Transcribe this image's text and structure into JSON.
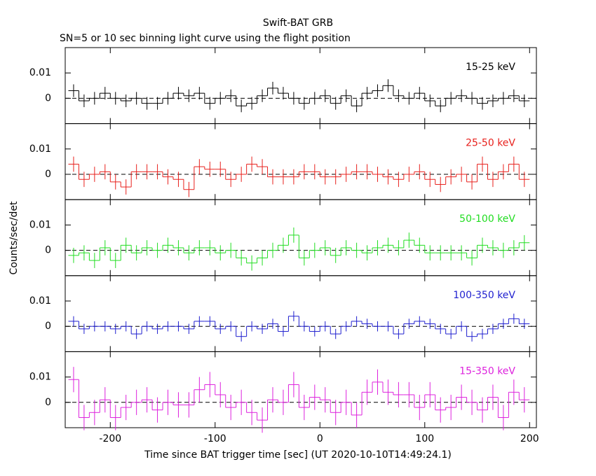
{
  "title": "Swift-BAT GRB",
  "subtitle": "SN=5 or 10 sec binning light curve using the flight position",
  "chart_data": {
    "type": "step",
    "stacked_panels": true,
    "x_label": "Time since BAT trigger time [sec] (UT 2020-10-10T14:49:24.1)",
    "y_label": "Counts/sec/det",
    "bin_width": 10,
    "xlim": [
      -243,
      206.5
    ],
    "xticks": [
      -200,
      -100,
      0,
      100,
      200
    ],
    "ylim": [
      -0.01,
      0.02
    ],
    "yticks": [
      0,
      0.01
    ],
    "zero_line": true,
    "x": [
      -235,
      -225,
      -215,
      -205,
      -195,
      -185,
      -175,
      -165,
      -155,
      -145,
      -135,
      -125,
      -115,
      -105,
      -95,
      -85,
      -75,
      -65,
      -55,
      -45,
      -35,
      -25,
      -15,
      -5,
      5,
      15,
      25,
      35,
      45,
      55,
      65,
      75,
      85,
      95,
      105,
      115,
      125,
      135,
      145,
      155,
      165,
      175,
      185,
      195
    ],
    "series": [
      {
        "name": "15-25 keV",
        "color": "#000000",
        "error": 0.0025,
        "values": [
          0.003,
          -0.001,
          0,
          0.002,
          0,
          -0.001,
          0,
          -0.002,
          -0.002,
          0,
          0.002,
          0.001,
          0.002,
          -0.002,
          0,
          0.001,
          -0.003,
          -0.002,
          0.001,
          0.004,
          0.002,
          0,
          -0.002,
          0,
          0.001,
          -0.002,
          0.001,
          -0.003,
          0.002,
          0.003,
          0.005,
          0.001,
          0,
          0.002,
          -0.001,
          -0.003,
          0,
          0.001,
          0,
          -0.002,
          -0.001,
          0,
          0.001,
          -0.001
        ]
      },
      {
        "name": "25-50 keV",
        "color": "#e8211d",
        "error": 0.003,
        "values": [
          0.004,
          -0.002,
          0,
          0.001,
          -0.003,
          -0.005,
          0.001,
          0.001,
          0.001,
          -0.001,
          -0.002,
          -0.006,
          0.003,
          0.002,
          0.002,
          -0.002,
          0,
          0.004,
          0.003,
          -0.001,
          -0.001,
          -0.001,
          0.001,
          0.001,
          -0.001,
          -0.001,
          0,
          0.001,
          0.001,
          0,
          -0.001,
          -0.002,
          0,
          0.001,
          -0.002,
          -0.004,
          -0.001,
          0,
          -0.003,
          0.004,
          -0.002,
          0.001,
          0.004,
          -0.002
        ]
      },
      {
        "name": "50-100 keV",
        "color": "#22dd22",
        "error": 0.003,
        "values": [
          -0.002,
          -0.001,
          -0.004,
          0.001,
          -0.004,
          0.002,
          -0.001,
          0.001,
          0,
          0.002,
          0.001,
          -0.001,
          0.001,
          0.001,
          -0.001,
          0,
          -0.003,
          -0.005,
          -0.003,
          0,
          0.002,
          0.006,
          -0.003,
          0,
          0.001,
          -0.002,
          0.001,
          0,
          -0.001,
          0.001,
          0.002,
          0.001,
          0.004,
          0.002,
          -0.001,
          -0.001,
          -0.001,
          -0.001,
          -0.003,
          0.002,
          0.001,
          0,
          0.001,
          0.003
        ]
      },
      {
        "name": "100-350 keV",
        "color": "#1f1fcf",
        "error": 0.002,
        "values": [
          0.002,
          -0.001,
          0,
          0,
          -0.001,
          0,
          -0.003,
          0,
          -0.001,
          0,
          0,
          -0.001,
          0.002,
          0.002,
          -0.001,
          0,
          -0.004,
          0,
          -0.001,
          0.001,
          -0.002,
          0.004,
          0,
          -0.002,
          0,
          -0.003,
          0,
          0.002,
          0.001,
          0,
          0,
          -0.003,
          0.001,
          0.002,
          0.001,
          -0.001,
          -0.003,
          0,
          -0.004,
          -0.003,
          -0.001,
          0.001,
          0.003,
          0.001
        ]
      },
      {
        "name": "15-350 keV",
        "color": "#dd22dd",
        "error": 0.005,
        "values": [
          0.009,
          -0.006,
          -0.004,
          0.001,
          -0.006,
          -0.002,
          0,
          0.001,
          -0.003,
          0,
          -0.001,
          -0.001,
          0.005,
          0.007,
          0.003,
          -0.002,
          0,
          -0.004,
          -0.007,
          0.001,
          0,
          0.007,
          -0.002,
          0.002,
          0.001,
          -0.004,
          0,
          -0.005,
          0.004,
          0.008,
          0.004,
          0.003,
          0.003,
          -0.002,
          0.003,
          -0.003,
          -0.002,
          0.002,
          0,
          -0.003,
          0.002,
          -0.006,
          0.004,
          0.001
        ]
      }
    ]
  }
}
